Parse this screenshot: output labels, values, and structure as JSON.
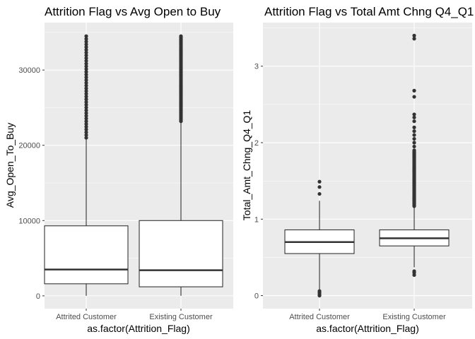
{
  "chart_data": [
    {
      "type": "box",
      "title": "Attrition Flag vs Avg Open to Buy",
      "xlabel": "as.factor(Attrition_Flag)",
      "ylabel": "Avg_Open_To_Buy",
      "ylim": [
        -1700,
        36300
      ],
      "yticks": [
        0,
        10000,
        20000,
        30000
      ],
      "ytick_labels": [
        "0",
        "10000",
        "20000",
        "30000"
      ],
      "categories": [
        "Attrited Customer",
        "Existing Customer"
      ],
      "boxes": [
        {
          "min": 0,
          "q1": 1600,
          "median": 3500,
          "q3": 9300,
          "whisker_high": 21000,
          "outlier_range": [
            21000,
            34500
          ],
          "outlier_count": 38
        },
        {
          "min": 0,
          "q1": 1200,
          "median": 3400,
          "q3": 10000,
          "whisker_high": 23200,
          "outlier_range": [
            23200,
            34500
          ],
          "outlier_count": 60
        }
      ],
      "grid": true,
      "colors": {
        "panel": "#ebebeb",
        "grid": "#ffffff",
        "box_fill": "#ffffff",
        "line": "#333333"
      }
    },
    {
      "type": "box",
      "title": "Attrition Flag vs Total Amt Chng Q4_Q1",
      "xlabel": "as.factor(Attrition_Flag)",
      "ylabel": "Total_Amt_Chng_Q4_Q1",
      "ylim": [
        -0.17,
        3.57
      ],
      "yticks": [
        0,
        1,
        2,
        3
      ],
      "ytick_labels": [
        "0",
        "1",
        "2",
        "3"
      ],
      "categories": [
        "Attrited Customer",
        "Existing Customer"
      ],
      "boxes": [
        {
          "min": 0.08,
          "q1": 0.55,
          "median": 0.7,
          "q3": 0.86,
          "whisker_high": 1.24,
          "outliers": [
            0.0,
            0.02,
            0.04,
            0.06,
            1.33,
            1.42,
            1.49
          ]
        },
        {
          "min": 0.37,
          "q1": 0.65,
          "median": 0.75,
          "q3": 0.86,
          "whisker_high": 1.17,
          "outliers": [
            0.27,
            0.3,
            0.32,
            1.95,
            2.0,
            2.05,
            2.1,
            2.15,
            2.2,
            2.28,
            2.33,
            2.37,
            2.6,
            2.68,
            3.36,
            3.4
          ],
          "dense_outlier_range": [
            1.17,
            1.9
          ],
          "dense_outlier_count": 55
        }
      ],
      "grid": true,
      "colors": {
        "panel": "#ebebeb",
        "grid": "#ffffff",
        "box_fill": "#ffffff",
        "line": "#333333"
      }
    }
  ]
}
